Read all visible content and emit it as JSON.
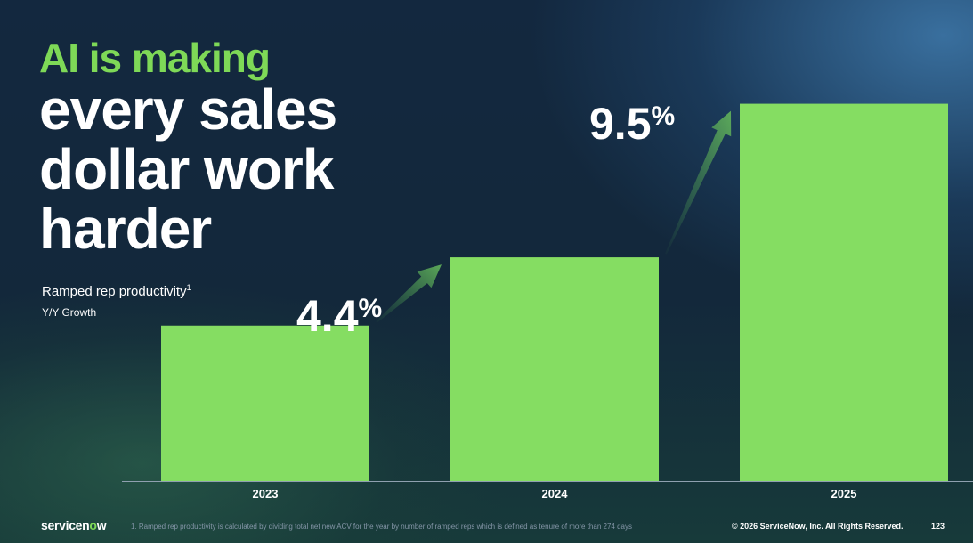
{
  "headline": {
    "line1": "AI is making",
    "line2": "every sales",
    "line3": "dollar work",
    "line4": "harder"
  },
  "subtitle": "Ramped rep productivity",
  "subtitle_sup": "1",
  "subtitle2": "Y/Y Growth",
  "chart_data": {
    "type": "bar",
    "categories": [
      "2023",
      "2024",
      "2025"
    ],
    "values": [
      100,
      104.4,
      114.3
    ],
    "ylim": [
      90,
      116.4
    ],
    "growth_labels": [
      "4.4%",
      "9.5%"
    ],
    "bar_color": "#85dd62",
    "axis_color": "#8fa0b0",
    "grid": false
  },
  "footer": {
    "logo_text": "servicen",
    "logo_o": "o",
    "logo_tail": "w",
    "footnote": "1. Ramped rep productivity is calculated by dividing total net new ACV for the year by number of ramped reps which is defined as tenure of more than 274 days",
    "copyright": "© 2026 ServiceNow, Inc. All Rights Reserved.",
    "page": "123"
  },
  "colors": {
    "accent": "#7ed957",
    "text": "#ffffff"
  }
}
